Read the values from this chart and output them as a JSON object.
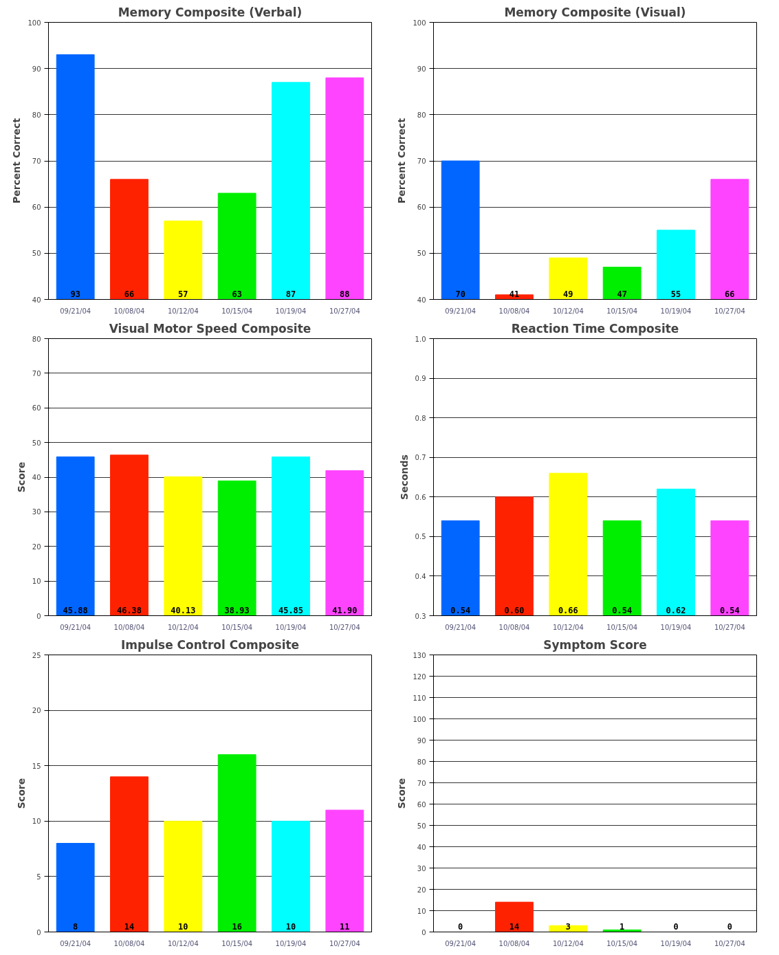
{
  "chart_data": [
    {
      "type": "bar",
      "title": "Memory Composite (Verbal)",
      "ylabel": "Percent Correct",
      "categories": [
        "09/21/04",
        "10/08/04",
        "10/12/04",
        "10/15/04",
        "10/19/04",
        "10/27/04"
      ],
      "values": [
        93,
        66,
        57,
        63,
        87,
        88
      ],
      "colors": [
        "#0066ff",
        "#ff2200",
        "#ffff00",
        "#00ee00",
        "#00ffff",
        "#ff44ff"
      ],
      "ylim": [
        40,
        100
      ],
      "yticks": [
        40,
        50,
        60,
        70,
        80,
        90,
        100
      ],
      "grid": "y",
      "data_labels": true
    },
    {
      "type": "bar",
      "title": "Memory Composite (Visual)",
      "ylabel": "Percent Correct",
      "categories": [
        "09/21/04",
        "10/08/04",
        "10/12/04",
        "10/15/04",
        "10/19/04",
        "10/27/04"
      ],
      "values": [
        70,
        41,
        49,
        47,
        55,
        66
      ],
      "colors": [
        "#0066ff",
        "#ff2200",
        "#ffff00",
        "#00ee00",
        "#00ffff",
        "#ff44ff"
      ],
      "ylim": [
        40,
        100
      ],
      "yticks": [
        40,
        50,
        60,
        70,
        80,
        90,
        100
      ],
      "grid": "y",
      "data_labels": true
    },
    {
      "type": "bar",
      "title": "Visual Motor Speed Composite",
      "ylabel": "Score",
      "categories": [
        "09/21/04",
        "10/08/04",
        "10/12/04",
        "10/15/04",
        "10/19/04",
        "10/27/04"
      ],
      "values": [
        45.88,
        46.38,
        40.13,
        38.93,
        45.85,
        41.9
      ],
      "value_labels": [
        "45.88",
        "46.38",
        "40.13",
        "38.93",
        "45.85",
        "41.90"
      ],
      "colors": [
        "#0066ff",
        "#ff2200",
        "#ffff00",
        "#00ee00",
        "#00ffff",
        "#ff44ff"
      ],
      "ylim": [
        0,
        80
      ],
      "yticks": [
        0,
        10,
        20,
        30,
        40,
        50,
        60,
        70,
        80
      ],
      "grid": "y"
    },
    {
      "type": "bar",
      "title": "Reaction Time Composite",
      "ylabel": "Seconds",
      "categories": [
        "09/21/04",
        "10/08/04",
        "10/12/04",
        "10/15/04",
        "10/19/04",
        "10/27/04"
      ],
      "values": [
        0.54,
        0.6,
        0.66,
        0.54,
        0.62,
        0.54
      ],
      "value_labels": [
        "0.54",
        "0.60",
        "0.66",
        "0.54",
        "0.62",
        "0.54"
      ],
      "colors": [
        "#0066ff",
        "#ff2200",
        "#ffff00",
        "#00ee00",
        "#00ffff",
        "#ff44ff"
      ],
      "ylim": [
        0.3,
        1.0
      ],
      "yticks": [
        0.3,
        0.4,
        0.5,
        0.6,
        0.7,
        0.8,
        0.9,
        {
          "value": 1.0,
          "label": "1.0"
        }
      ],
      "grid": "y"
    },
    {
      "type": "bar",
      "title": "Impulse Control Composite",
      "ylabel": "Score",
      "categories": [
        "09/21/04",
        "10/08/04",
        "10/12/04",
        "10/15/04",
        "10/19/04",
        "10/27/04"
      ],
      "values": [
        8,
        14,
        10,
        16,
        10,
        11
      ],
      "colors": [
        "#0066ff",
        "#ff2200",
        "#ffff00",
        "#00ee00",
        "#00ffff",
        "#ff44ff"
      ],
      "ylim": [
        0,
        25
      ],
      "yticks": [
        0,
        5,
        10,
        15,
        20,
        25
      ],
      "grid": "y",
      "data_labels": true
    },
    {
      "type": "bar",
      "title": "Symptom Score",
      "ylabel": "Score",
      "categories": [
        "09/21/04",
        "10/08/04",
        "10/12/04",
        "10/15/04",
        "10/19/04",
        "10/27/04"
      ],
      "values": [
        0,
        14,
        3,
        1,
        0,
        0
      ],
      "colors": [
        "#0066ff",
        "#ff2200",
        "#ffff00",
        "#00ee00",
        "#00ffff",
        "#ff44ff"
      ],
      "ylim": [
        0,
        130
      ],
      "yticks": [
        0,
        10,
        20,
        30,
        40,
        50,
        60,
        70,
        80,
        90,
        100,
        110,
        120,
        130
      ],
      "grid": "y",
      "data_labels": true
    }
  ]
}
